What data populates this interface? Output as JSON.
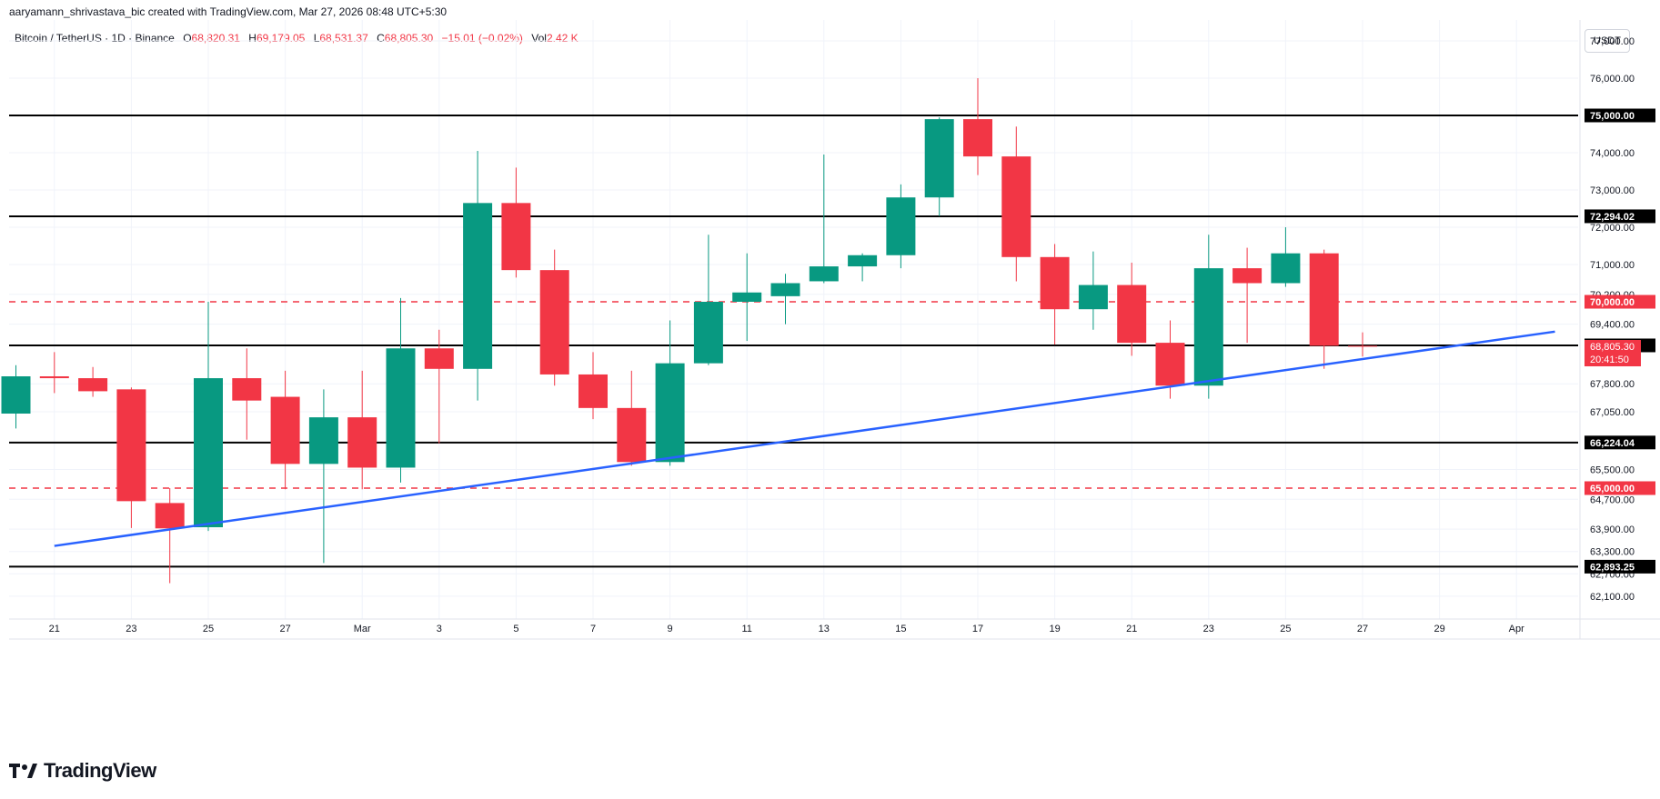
{
  "header": {
    "credit": "aaryamann_shrivastava_bic created with TradingView.com, Mar 27, 2026 08:48 UTC+5:30"
  },
  "legend": {
    "symbol": "Bitcoin / TetherUS · 1D · Binance",
    "open_label": "O",
    "open": "68,820.31",
    "high_label": "H",
    "high": "69,179.05",
    "low_label": "L",
    "low": "68,531.37",
    "close_label": "C",
    "close": "68,805.30",
    "change": "−15.01 (−0.02%)",
    "volume_label": "Vol",
    "volume": "2.42 K"
  },
  "currency": "USDT",
  "brand": {
    "name": "TradingView",
    "logo_text": "TV"
  },
  "colors": {
    "up": "#089981",
    "down": "#f23645",
    "trendline": "#2962ff",
    "level": "#000000",
    "grid": "#f0f3fa",
    "dashed_level": "#f23645"
  },
  "chart_data": {
    "type": "candlestick",
    "title": "Bitcoin / TetherUS · 1D · Binance",
    "ylim": [
      61800,
      77600
    ],
    "grid": true,
    "x_tick_labels": [
      {
        "day": 1,
        "label": "21"
      },
      {
        "day": 3,
        "label": "23"
      },
      {
        "day": 5,
        "label": "25"
      },
      {
        "day": 7,
        "label": "27"
      },
      {
        "day": 9,
        "label": "Mar"
      },
      {
        "day": 11,
        "label": "3"
      },
      {
        "day": 13,
        "label": "5"
      },
      {
        "day": 15,
        "label": "7"
      },
      {
        "day": 17,
        "label": "9"
      },
      {
        "day": 19,
        "label": "11"
      },
      {
        "day": 21,
        "label": "13"
      },
      {
        "day": 23,
        "label": "15"
      },
      {
        "day": 25,
        "label": "17"
      },
      {
        "day": 27,
        "label": "19"
      },
      {
        "day": 29,
        "label": "21"
      },
      {
        "day": 31,
        "label": "23"
      },
      {
        "day": 33,
        "label": "25"
      },
      {
        "day": 35,
        "label": "27"
      },
      {
        "day": 37,
        "label": "29"
      },
      {
        "day": 39,
        "label": "Apr"
      }
    ],
    "y_tick_labels": [
      "77,000.00",
      "76,000.00",
      "74,000.00",
      "73,000.00",
      "72,000.00",
      "71,000.00",
      "70,200.00",
      "69,400.00",
      "67,800.00",
      "67,050.00",
      "65,500.00",
      "64,700.00",
      "63,900.00",
      "63,300.00",
      "62,700.00",
      "62,100.00"
    ],
    "y_tick_values": [
      77000,
      76000,
      74000,
      73000,
      72000,
      71000,
      70200,
      69400,
      67800,
      67050,
      65500,
      64700,
      63900,
      63300,
      62700,
      62100
    ],
    "candles": [
      {
        "day": 0,
        "o": 67000,
        "h": 68300,
        "l": 66600,
        "c": 68000
      },
      {
        "day": 1,
        "o": 68000,
        "h": 68650,
        "l": 67550,
        "c": 67950
      },
      {
        "day": 2,
        "o": 67950,
        "h": 68250,
        "l": 67450,
        "c": 67600
      },
      {
        "day": 3,
        "o": 67650,
        "h": 67700,
        "l": 63930,
        "c": 64650
      },
      {
        "day": 4,
        "o": 64600,
        "h": 65000,
        "l": 62450,
        "c": 63920
      },
      {
        "day": 5,
        "o": 63950,
        "h": 70000,
        "l": 63850,
        "c": 67950
      },
      {
        "day": 6,
        "o": 67950,
        "h": 68750,
        "l": 66300,
        "c": 67350
      },
      {
        "day": 7,
        "o": 67450,
        "h": 68150,
        "l": 64970,
        "c": 65650
      },
      {
        "day": 8,
        "o": 65650,
        "h": 67650,
        "l": 62990,
        "c": 66900
      },
      {
        "day": 9,
        "o": 66900,
        "h": 68150,
        "l": 64970,
        "c": 65550
      },
      {
        "day": 10,
        "o": 65550,
        "h": 70100,
        "l": 65150,
        "c": 68750
      },
      {
        "day": 11,
        "o": 68750,
        "h": 69250,
        "l": 66200,
        "c": 68200
      },
      {
        "day": 12,
        "o": 68200,
        "h": 74050,
        "l": 67350,
        "c": 72650
      },
      {
        "day": 13,
        "o": 72650,
        "h": 73600,
        "l": 70650,
        "c": 70850
      },
      {
        "day": 14,
        "o": 70850,
        "h": 71400,
        "l": 67750,
        "c": 68050
      },
      {
        "day": 15,
        "o": 68050,
        "h": 68650,
        "l": 66850,
        "c": 67150
      },
      {
        "day": 16,
        "o": 67150,
        "h": 68150,
        "l": 65600,
        "c": 65700
      },
      {
        "day": 17,
        "o": 65700,
        "h": 69500,
        "l": 65600,
        "c": 68350
      },
      {
        "day": 18,
        "o": 68350,
        "h": 71800,
        "l": 68300,
        "c": 70000
      },
      {
        "day": 19,
        "o": 70000,
        "h": 71300,
        "l": 68950,
        "c": 70250
      },
      {
        "day": 20,
        "o": 70150,
        "h": 70750,
        "l": 69400,
        "c": 70500
      },
      {
        "day": 21,
        "o": 70550,
        "h": 73950,
        "l": 70500,
        "c": 70950
      },
      {
        "day": 22,
        "o": 70950,
        "h": 71300,
        "l": 70550,
        "c": 71250
      },
      {
        "day": 23,
        "o": 71250,
        "h": 73150,
        "l": 70900,
        "c": 72800
      },
      {
        "day": 24,
        "o": 72800,
        "h": 74950,
        "l": 72300,
        "c": 74900
      },
      {
        "day": 25,
        "o": 74900,
        "h": 76000,
        "l": 73400,
        "c": 73900
      },
      {
        "day": 26,
        "o": 73900,
        "h": 74700,
        "l": 70550,
        "c": 71200
      },
      {
        "day": 27,
        "o": 71200,
        "h": 71550,
        "l": 68850,
        "c": 69800
      },
      {
        "day": 28,
        "o": 69800,
        "h": 71350,
        "l": 69250,
        "c": 70450
      },
      {
        "day": 29,
        "o": 70450,
        "h": 71050,
        "l": 68550,
        "c": 68900
      },
      {
        "day": 30,
        "o": 68900,
        "h": 69500,
        "l": 67400,
        "c": 67750
      },
      {
        "day": 31,
        "o": 67750,
        "h": 71800,
        "l": 67400,
        "c": 70900
      },
      {
        "day": 32,
        "o": 70900,
        "h": 71450,
        "l": 68900,
        "c": 70500
      },
      {
        "day": 33,
        "o": 70500,
        "h": 72000,
        "l": 70400,
        "c": 71300
      },
      {
        "day": 34,
        "o": 71300,
        "h": 71400,
        "l": 68200,
        "c": 68820
      },
      {
        "day": 35,
        "o": 68820,
        "h": 69179,
        "l": 68531,
        "c": 68805
      }
    ],
    "trendline": {
      "start": {
        "day": 1,
        "price": 63450
      },
      "end": {
        "day": 40,
        "price": 69200
      }
    },
    "horizontal_levels": [
      {
        "price": 75000,
        "label": "75,000.00",
        "style": "solid",
        "color": "#000000"
      },
      {
        "price": 72294,
        "label": "72,294.02",
        "style": "solid",
        "color": "#000000"
      },
      {
        "price": 70000,
        "label": "70,000.00",
        "style": "dashed",
        "color": "#f23645"
      },
      {
        "price": 68830,
        "label": "68,830.08",
        "style": "solid",
        "color": "#000000"
      },
      {
        "price": 66224,
        "label": "66,224.04",
        "style": "solid",
        "color": "#000000"
      },
      {
        "price": 65000,
        "label": "65,000.00",
        "style": "dashed",
        "color": "#f23645"
      },
      {
        "price": 62893,
        "label": "62,893.25",
        "style": "solid",
        "color": "#000000"
      }
    ],
    "last_price": {
      "price": 68805,
      "label": "68,805.30",
      "countdown": "20:41:50"
    }
  }
}
